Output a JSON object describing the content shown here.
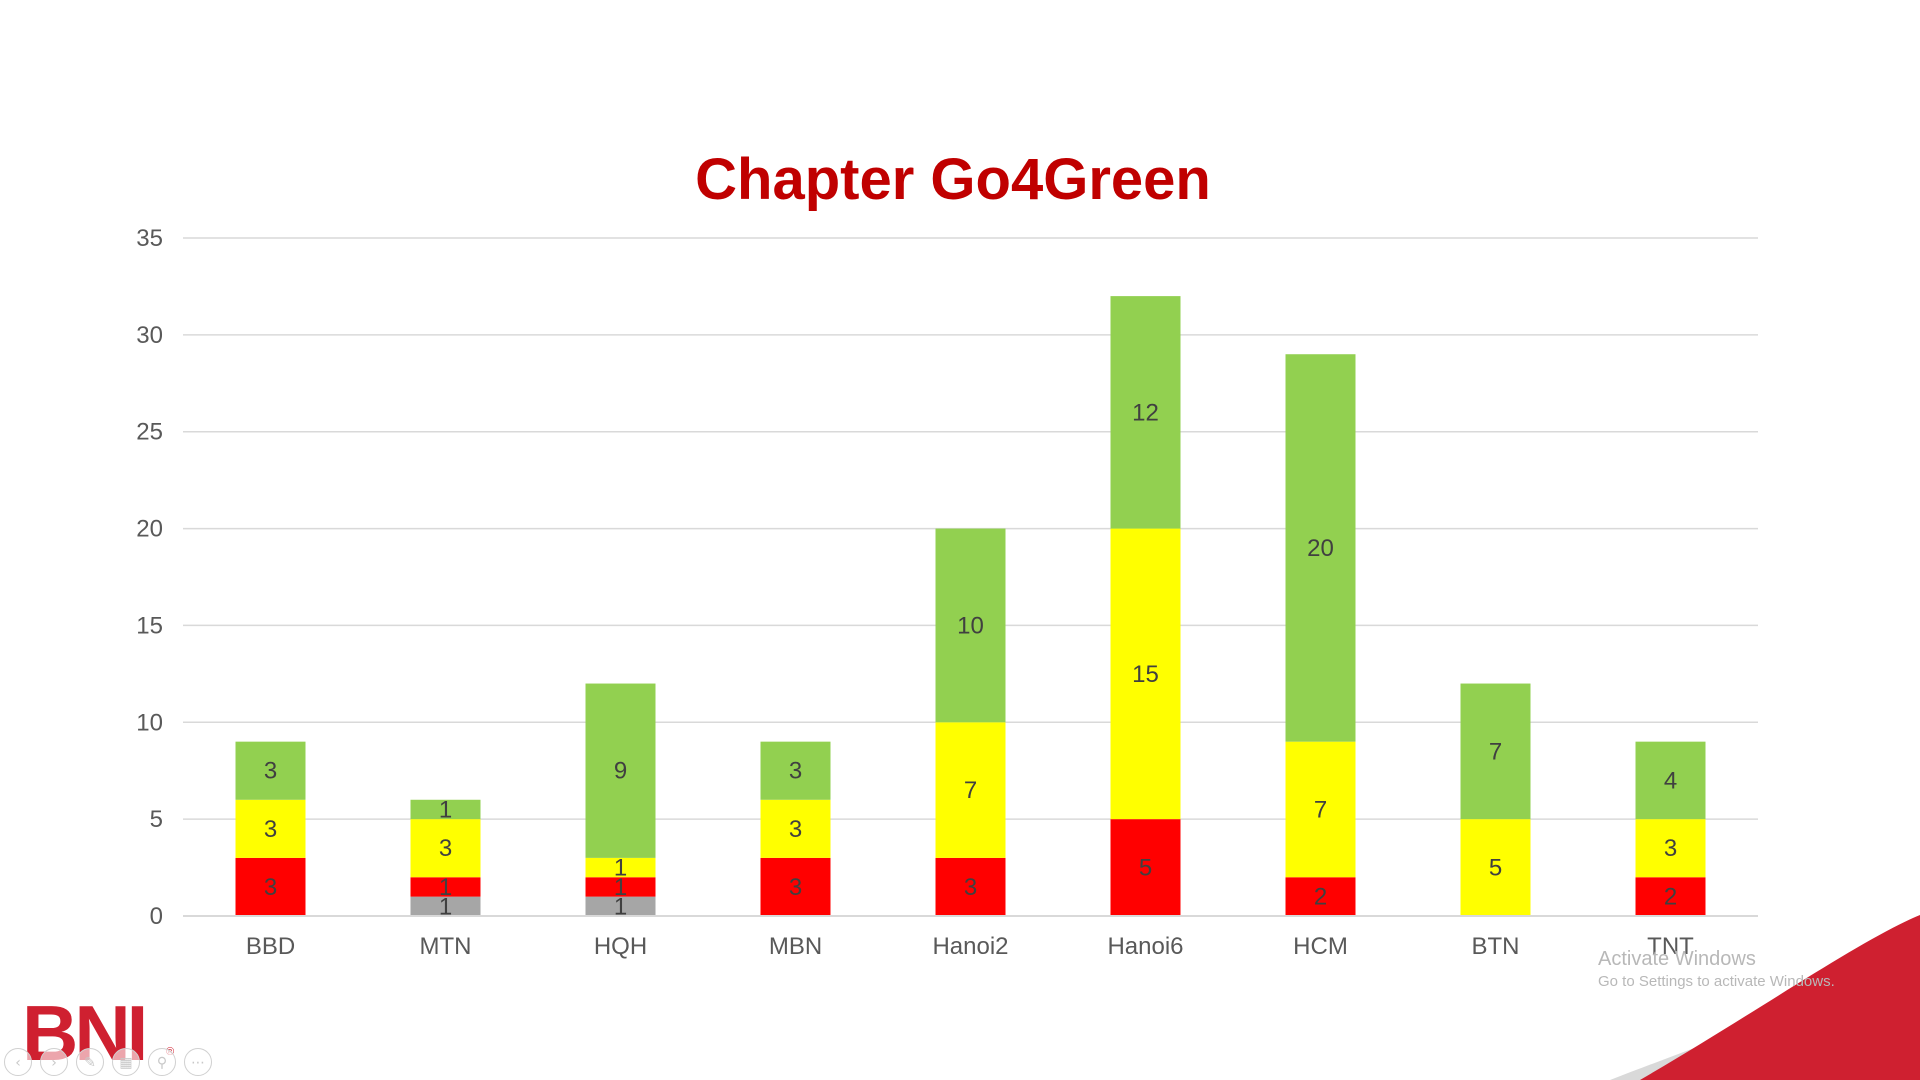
{
  "slide": {
    "watermark": {
      "title": "Activate Windows",
      "subtitle": "Go to Settings to activate Windows."
    },
    "logo": {
      "text": "BNI",
      "mark": "®"
    },
    "toolbar": [
      {
        "icon": "previous-slide-icon",
        "glyph": "‹"
      },
      {
        "icon": "next-slide-icon",
        "glyph": "›"
      },
      {
        "icon": "pen-icon",
        "glyph": "✎"
      },
      {
        "icon": "slides-grid-icon",
        "glyph": "▦"
      },
      {
        "icon": "zoom-icon",
        "glyph": "⚲"
      },
      {
        "icon": "more-options-icon",
        "glyph": "⋯"
      }
    ],
    "colors": {
      "title": "#c00000",
      "brand": "#cf2030"
    }
  },
  "chart_data": {
    "type": "bar",
    "stacked": true,
    "title": "Chapter Go4Green",
    "categories": [
      "BBD",
      "MTN",
      "HQH",
      "MBN",
      "Hanoi2",
      "Hanoi6",
      "HCM",
      "BTN",
      "TNT"
    ],
    "series": [
      {
        "color": "#a6a6a6",
        "values": [
          0,
          1,
          1,
          0,
          0,
          0,
          0,
          0,
          0
        ]
      },
      {
        "color": "#ff0000",
        "values": [
          3,
          1,
          1,
          3,
          3,
          5,
          2,
          0,
          2
        ]
      },
      {
        "color": "#ffff00",
        "values": [
          3,
          3,
          1,
          3,
          7,
          15,
          7,
          5,
          3
        ]
      },
      {
        "color": "#92d050",
        "values": [
          3,
          1,
          9,
          3,
          10,
          12,
          20,
          7,
          4
        ]
      }
    ],
    "ylim": [
      0,
      35
    ],
    "yticks": [
      0,
      5,
      10,
      15,
      20,
      25,
      30,
      35
    ],
    "grid": true,
    "xlabel": "",
    "ylabel": "",
    "legend": "none"
  }
}
